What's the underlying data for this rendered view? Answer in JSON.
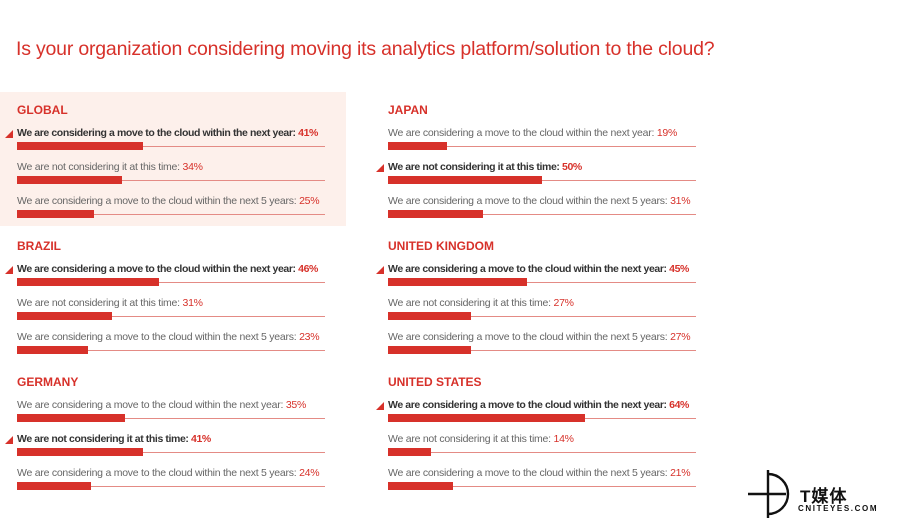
{
  "title": "Is your organization considering moving its analytics platform/solution to the cloud?",
  "accent_color": "#d7312a",
  "chart_data": {
    "type": "bar",
    "title": "Is your organization considering moving its analytics platform/solution to the cloud?",
    "xlim": [
      0,
      100
    ],
    "panels": [
      {
        "country": "GLOBAL",
        "rows": [
          {
            "label": "We are considering a move to the cloud within the next year:",
            "pct_text": "41%",
            "value": 41,
            "highlight": true
          },
          {
            "label": "We are not considering it at this time:",
            "pct_text": "34%",
            "value": 34,
            "highlight": false
          },
          {
            "label": "We are considering a move to the cloud within the next 5 years:",
            "pct_text": "25%",
            "value": 25,
            "highlight": false
          }
        ]
      },
      {
        "country": "JAPAN",
        "rows": [
          {
            "label": "We are considering a move to the cloud within the next year:",
            "pct_text": "19%",
            "value": 19,
            "highlight": false
          },
          {
            "label": "We are not considering it at this time:",
            "pct_text": "50%",
            "value": 50,
            "highlight": true
          },
          {
            "label": "We are considering a move to the cloud within the next 5 years:",
            "pct_text": "31%",
            "value": 31,
            "highlight": false
          }
        ]
      },
      {
        "country": "BRAZIL",
        "rows": [
          {
            "label": "We are considering a move to the cloud within the next year:",
            "pct_text": "46%",
            "value": 46,
            "highlight": true
          },
          {
            "label": "We are not considering it at this time:",
            "pct_text": "31%",
            "value": 31,
            "highlight": false
          },
          {
            "label": "We are considering a move to the cloud within the next 5 years:",
            "pct_text": "23%",
            "value": 23,
            "highlight": false
          }
        ]
      },
      {
        "country": "UNITED KINGDOM",
        "rows": [
          {
            "label": "We are considering a move to the cloud within the next year:",
            "pct_text": "45%",
            "value": 45,
            "highlight": true
          },
          {
            "label": "We are not considering it at this time:",
            "pct_text": "27%",
            "value": 27,
            "highlight": false
          },
          {
            "label": "We are considering a move to the cloud within the next 5 years:",
            "pct_text": "27%",
            "value": 27,
            "highlight": false
          }
        ]
      },
      {
        "country": "GERMANY",
        "rows": [
          {
            "label": "We are considering a move to the cloud within the next year:",
            "pct_text": "35%",
            "value": 35,
            "highlight": false
          },
          {
            "label": "We are not considering it at this time:",
            "pct_text": "41%",
            "value": 41,
            "highlight": true
          },
          {
            "label": "We are considering a move to the cloud within the next 5 years:",
            "pct_text": "24%",
            "value": 24,
            "highlight": false
          }
        ]
      },
      {
        "country": "UNITED STATES",
        "rows": [
          {
            "label": "We are considering a move to the cloud within the next year:",
            "pct_text": "64%",
            "value": 64,
            "highlight": true
          },
          {
            "label": "We are not considering it at this time:",
            "pct_text": "14%",
            "value": 14,
            "highlight": false
          },
          {
            "label": "We are considering a move to the cloud within the next 5 years:",
            "pct_text": "21%",
            "value": 21,
            "highlight": false
          }
        ]
      }
    ]
  },
  "watermark": {
    "main_text": "T媒体",
    "sub_text": "CNITEYES.COM"
  }
}
